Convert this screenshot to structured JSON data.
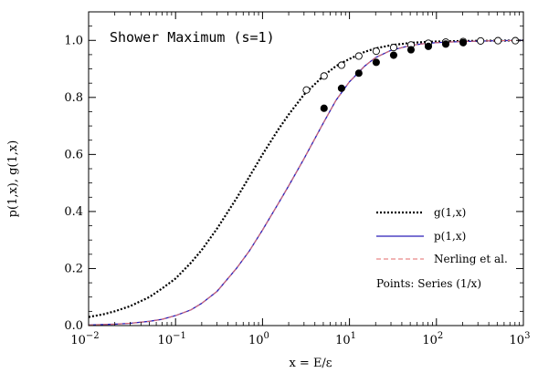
{
  "chart_data": {
    "type": "line",
    "title": "Shower Maximum (s=1)",
    "xlabel": "x = E/ε",
    "ylabel": "p(1,x), g(1,x)",
    "x_scale": "log",
    "xlim": [
      0.01,
      1000
    ],
    "ylim": [
      0,
      1.1
    ],
    "x_ticks": [
      {
        "value": 0.01,
        "base": "10",
        "exp": "−2"
      },
      {
        "value": 0.1,
        "base": "10",
        "exp": "−1"
      },
      {
        "value": 1,
        "base": "10",
        "exp": "0"
      },
      {
        "value": 10,
        "base": "10",
        "exp": "1"
      },
      {
        "value": 100,
        "base": "10",
        "exp": "2"
      },
      {
        "value": 1000,
        "base": "10",
        "exp": "3"
      }
    ],
    "y_ticks": [
      {
        "value": 0.0,
        "label": "0.0"
      },
      {
        "value": 0.2,
        "label": "0.2"
      },
      {
        "value": 0.4,
        "label": "0.4"
      },
      {
        "value": 0.6,
        "label": "0.6"
      },
      {
        "value": 0.8,
        "label": "0.8"
      },
      {
        "value": 1.0,
        "label": "1.0"
      }
    ],
    "grid": false,
    "legend_position": "bottom-right",
    "series": [
      {
        "name": "g(1,x)",
        "style": "dotted",
        "color": "#000000",
        "x": [
          0.01,
          0.015,
          0.02,
          0.03,
          0.05,
          0.07,
          0.1,
          0.15,
          0.2,
          0.3,
          0.5,
          0.7,
          1,
          1.5,
          2,
          3,
          5,
          7,
          10,
          15,
          20,
          30,
          50,
          70,
          100,
          200,
          500,
          1000
        ],
        "y": [
          0.03,
          0.04,
          0.05,
          0.068,
          0.1,
          0.13,
          0.165,
          0.22,
          0.265,
          0.34,
          0.445,
          0.52,
          0.6,
          0.685,
          0.74,
          0.81,
          0.875,
          0.91,
          0.935,
          0.96,
          0.972,
          0.983,
          0.991,
          0.994,
          0.996,
          0.998,
          0.999,
          1.0
        ]
      },
      {
        "name": "p(1,x)",
        "style": "solid",
        "color": "#2a1fb8",
        "x": [
          0.01,
          0.02,
          0.03,
          0.05,
          0.07,
          0.1,
          0.15,
          0.2,
          0.3,
          0.5,
          0.7,
          1,
          1.5,
          2,
          3,
          5,
          7,
          10,
          15,
          20,
          30,
          50,
          70,
          100,
          200,
          500,
          1000
        ],
        "y": [
          0.002,
          0.005,
          0.008,
          0.015,
          0.022,
          0.035,
          0.055,
          0.078,
          0.12,
          0.2,
          0.26,
          0.335,
          0.425,
          0.49,
          0.585,
          0.71,
          0.79,
          0.855,
          0.91,
          0.94,
          0.965,
          0.982,
          0.988,
          0.992,
          0.996,
          0.999,
          1.0
        ]
      },
      {
        "name": "Nerling et al.",
        "style": "dashed",
        "color": "#e36a6a",
        "x": [
          0.01,
          0.02,
          0.03,
          0.05,
          0.07,
          0.1,
          0.15,
          0.2,
          0.3,
          0.5,
          0.7,
          1,
          1.5,
          2,
          3,
          5,
          7,
          10,
          15,
          20,
          30,
          50,
          70,
          100,
          200,
          500,
          1000
        ],
        "y": [
          0.002,
          0.005,
          0.008,
          0.015,
          0.022,
          0.035,
          0.055,
          0.078,
          0.12,
          0.2,
          0.26,
          0.335,
          0.425,
          0.49,
          0.585,
          0.71,
          0.79,
          0.855,
          0.91,
          0.94,
          0.965,
          0.982,
          0.988,
          0.992,
          0.996,
          0.999,
          1.0
        ]
      }
    ],
    "points": [
      {
        "name": "Points: Series (1/x)",
        "marker": "open-circle",
        "x": [
          3.2,
          5.1,
          8.1,
          12.8,
          20.3,
          32.2,
          51,
          80.8,
          128,
          203,
          322,
          510,
          808
        ],
        "y": [
          0.826,
          0.875,
          0.913,
          0.945,
          0.962,
          0.975,
          0.984,
          0.99,
          0.994,
          0.996,
          0.998,
          0.999,
          0.999
        ]
      },
      {
        "name": "",
        "marker": "filled-circle",
        "x": [
          5.1,
          8.1,
          12.8,
          20.3,
          32.2,
          51,
          80.8,
          128,
          203
        ],
        "y": [
          0.762,
          0.832,
          0.885,
          0.923,
          0.948,
          0.967,
          0.979,
          0.987,
          0.992
        ]
      }
    ],
    "legend": [
      {
        "label": "g(1,x)",
        "style": "dotted",
        "color": "#000000"
      },
      {
        "label": "p(1,x)",
        "style": "solid",
        "color": "#2a1fb8"
      },
      {
        "label": "Nerling et al.",
        "style": "dashed",
        "color": "#e36a6a"
      },
      {
        "label": "Points: Series (1/x)",
        "style": "none",
        "color": "#000000"
      }
    ]
  }
}
